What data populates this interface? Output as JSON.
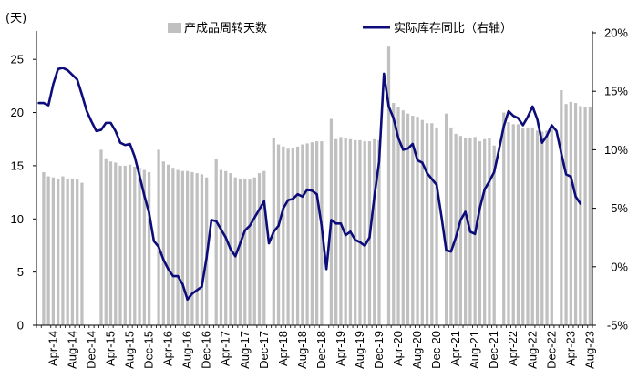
{
  "chart_data": {
    "type": "bar+line",
    "left_axis_unit": "(天)",
    "right_axis_unit": "",
    "left_ylim": [
      0,
      27.5
    ],
    "left_yticks": [
      "0",
      "5",
      "10",
      "15",
      "20",
      "25"
    ],
    "right_ylim": [
      -5,
      20
    ],
    "right_yticks": [
      "-5%",
      "0%",
      "5%",
      "10%",
      "15%",
      "20%"
    ],
    "x_tick_labels": [
      "Apr-14",
      "Aug-14",
      "Dec-14",
      "Apr-15",
      "Aug-15",
      "Dec-15",
      "Apr-16",
      "Aug-16",
      "Dec-16",
      "Apr-17",
      "Aug-17",
      "Dec-17",
      "Apr-18",
      "Aug-18",
      "Dec-18",
      "Apr-19",
      "Aug-19",
      "Dec-19",
      "Apr-20",
      "Aug-20",
      "Dec-20",
      "Apr-21",
      "Aug-21",
      "Dec-21",
      "Apr-22",
      "Aug-22",
      "Dec-22",
      "Apr-23",
      "Aug-23"
    ],
    "x_tick_label_month_index": [
      3,
      7,
      11,
      15,
      19,
      23,
      27,
      31,
      35,
      39,
      43,
      47,
      51,
      55,
      59,
      63,
      67,
      71,
      75,
      79,
      83,
      87,
      91,
      95,
      99,
      103,
      107,
      111,
      115
    ],
    "month_start": "2014-01",
    "months_count": 116,
    "legend_position": "top",
    "series": [
      {
        "name": "产成品周转天数",
        "kind": "bar",
        "axis": "left",
        "color": "#c0c0c0",
        "values": [
          null,
          14.4,
          14.0,
          13.9,
          13.8,
          14.0,
          13.8,
          13.8,
          13.7,
          13.4,
          null,
          null,
          null,
          16.5,
          15.7,
          15.4,
          15.3,
          15.0,
          15.0,
          15.1,
          14.9,
          14.8,
          14.6,
          14.4,
          null,
          16.5,
          15.4,
          15.1,
          14.8,
          14.6,
          14.5,
          14.5,
          14.4,
          14.3,
          14.2,
          13.9,
          null,
          15.6,
          14.6,
          14.5,
          14.3,
          13.9,
          13.8,
          13.8,
          13.7,
          13.9,
          14.3,
          14.5,
          null,
          17.6,
          17.0,
          16.8,
          16.6,
          16.7,
          16.8,
          17.0,
          17.1,
          17.2,
          17.3,
          17.3,
          null,
          19.4,
          17.5,
          17.7,
          17.6,
          17.5,
          17.4,
          17.4,
          17.3,
          17.3,
          17.5,
          17.4,
          null,
          26.2,
          20.9,
          20.5,
          20.2,
          19.9,
          19.7,
          19.6,
          19.3,
          19.0,
          19.0,
          18.6,
          null,
          19.9,
          18.6,
          18.0,
          17.8,
          17.6,
          17.6,
          17.7,
          17.3,
          17.5,
          17.6,
          16.9,
          null,
          20.0,
          19.1,
          18.9,
          18.9,
          18.5,
          18.6,
          18.6,
          18.3,
          18.2,
          18.3,
          18.6,
          null,
          22.1,
          20.8,
          21.0,
          20.9,
          20.6,
          20.5,
          20.5
        ]
      },
      {
        "name": "实际库存同比（右轴）",
        "kind": "line",
        "axis": "right",
        "color": "#0c0c7a",
        "values": [
          14.0,
          14.0,
          13.8,
          15.6,
          16.9,
          17.0,
          16.8,
          16.4,
          16.0,
          14.7,
          13.3,
          12.4,
          11.6,
          11.7,
          12.3,
          12.3,
          11.6,
          10.6,
          10.4,
          10.5,
          9.4,
          7.8,
          6.1,
          4.6,
          2.2,
          1.7,
          0.6,
          -0.2,
          -0.8,
          -0.8,
          -1.5,
          -2.8,
          -2.3,
          -2.0,
          -1.7,
          0.8,
          4.0,
          3.9,
          3.2,
          2.5,
          1.5,
          0.9,
          2.0,
          3.1,
          3.5,
          4.2,
          4.9,
          5.6,
          2.0,
          3.0,
          3.5,
          5.0,
          5.7,
          5.8,
          6.2,
          6.0,
          6.6,
          6.5,
          6.2,
          3.5,
          -0.2,
          4.0,
          3.7,
          3.7,
          2.7,
          3.0,
          2.3,
          2.1,
          1.8,
          2.5,
          6.0,
          9.0,
          16.5,
          13.7,
          12.7,
          11.0,
          10.0,
          10.1,
          10.5,
          9.1,
          8.9,
          8.0,
          7.5,
          7.0,
          4.3,
          1.4,
          1.3,
          2.5,
          4.0,
          4.7,
          3.0,
          2.8,
          5.0,
          6.6,
          7.3,
          8.1,
          10.0,
          12.0,
          13.3,
          12.9,
          12.7,
          12.1,
          12.8,
          13.7,
          12.6,
          10.6,
          11.2,
          12.1,
          11.6,
          9.7,
          7.9,
          7.7,
          6.0,
          5.4
        ]
      }
    ]
  }
}
